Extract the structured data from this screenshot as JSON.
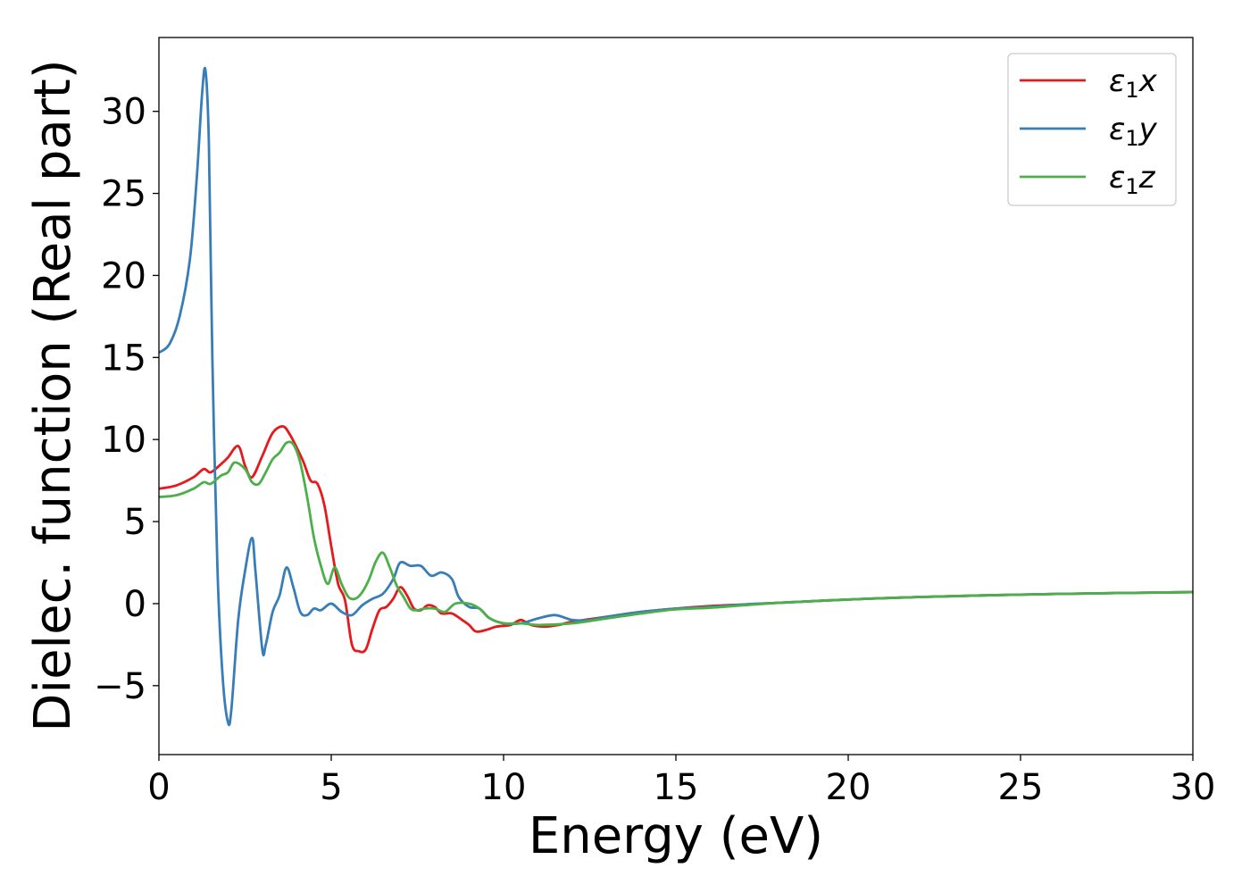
{
  "chart_data": {
    "type": "line",
    "xlabel": "Energy (eV)",
    "ylabel": "Dielec. function (Real part)",
    "xlim": [
      0,
      30
    ],
    "ylim": [
      -9.2,
      34.5
    ],
    "xticks": [
      0,
      5,
      10,
      15,
      20,
      25,
      30
    ],
    "yticks": [
      -5,
      0,
      5,
      10,
      15,
      20,
      25,
      30
    ],
    "xtick_labels": [
      "0",
      "5",
      "10",
      "15",
      "20",
      "25",
      "30"
    ],
    "ytick_labels": [
      "−5",
      "0",
      "5",
      "10",
      "15",
      "20",
      "25",
      "30"
    ],
    "grid": false,
    "legend_position": "top-right",
    "series": [
      {
        "name": "ε₁x",
        "legend_main": "ε",
        "legend_sub": "1",
        "legend_var": "x",
        "color": "#e41a1c",
        "x": [
          0,
          0.5,
          1.0,
          1.3,
          1.5,
          1.8,
          2.0,
          2.3,
          2.5,
          2.7,
          3.0,
          3.3,
          3.6,
          3.8,
          4.0,
          4.2,
          4.4,
          4.6,
          4.8,
          5.0,
          5.2,
          5.4,
          5.6,
          5.8,
          6.0,
          6.2,
          6.4,
          6.6,
          6.8,
          7.0,
          7.2,
          7.4,
          7.6,
          7.8,
          8.0,
          8.2,
          8.5,
          8.8,
          9.0,
          9.2,
          9.5,
          9.8,
          10.2,
          10.5,
          10.8,
          11.2,
          11.6,
          12.0,
          13.0,
          14.0,
          15.0,
          16.0,
          17.0,
          18.0,
          20.0,
          22.0,
          25.0,
          28.0,
          30.0
        ],
        "y": [
          7.0,
          7.2,
          7.7,
          8.2,
          8.0,
          8.5,
          8.9,
          9.6,
          8.4,
          7.7,
          9.0,
          10.4,
          10.8,
          10.3,
          9.5,
          8.6,
          7.5,
          7.3,
          6.0,
          3.5,
          1.2,
          0.2,
          -2.5,
          -2.9,
          -2.8,
          -1.5,
          -0.4,
          -0.2,
          0.3,
          1.0,
          0.5,
          -0.3,
          -0.4,
          -0.1,
          -0.2,
          -0.6,
          -0.6,
          -1.0,
          -1.3,
          -1.7,
          -1.6,
          -1.4,
          -1.3,
          -1.0,
          -1.3,
          -1.4,
          -1.3,
          -1.1,
          -0.8,
          -0.5,
          -0.3,
          -0.15,
          -0.05,
          0.05,
          0.25,
          0.4,
          0.55,
          0.65,
          0.7
        ]
      },
      {
        "name": "ε₁y",
        "legend_main": "ε",
        "legend_sub": "1",
        "legend_var": "y",
        "color": "#377eb8",
        "x": [
          0,
          0.3,
          0.6,
          0.9,
          1.1,
          1.25,
          1.35,
          1.45,
          1.55,
          1.7,
          1.85,
          2.0,
          2.1,
          2.3,
          2.5,
          2.7,
          2.8,
          3.0,
          3.1,
          3.3,
          3.5,
          3.7,
          3.9,
          4.1,
          4.3,
          4.5,
          4.7,
          5.0,
          5.3,
          5.6,
          5.9,
          6.2,
          6.5,
          6.8,
          7.0,
          7.3,
          7.6,
          7.9,
          8.2,
          8.5,
          8.7,
          9.0,
          9.3,
          9.6,
          10.0,
          10.5,
          11.0,
          11.5,
          12.0,
          12.5,
          13.0,
          14.0,
          15.0,
          16.0,
          17.0,
          18.0,
          20.0,
          22.0,
          25.0,
          28.0,
          30.0
        ],
        "y": [
          15.3,
          15.8,
          17.5,
          21.0,
          26.0,
          31.0,
          32.5,
          28.0,
          15.0,
          2.0,
          -4.5,
          -7.2,
          -6.5,
          -1.0,
          2.0,
          4.0,
          2.0,
          -2.8,
          -2.5,
          -0.5,
          0.5,
          2.2,
          1.0,
          -0.5,
          -0.7,
          -0.3,
          -0.4,
          0.0,
          -0.5,
          -0.7,
          -0.1,
          0.3,
          0.6,
          1.5,
          2.5,
          2.3,
          2.3,
          1.7,
          1.9,
          1.5,
          0.4,
          -0.2,
          -0.3,
          -0.9,
          -1.2,
          -1.2,
          -0.9,
          -0.7,
          -1.0,
          -1.0,
          -0.8,
          -0.5,
          -0.3,
          -0.2,
          -0.05,
          0.05,
          0.25,
          0.4,
          0.55,
          0.65,
          0.7
        ]
      },
      {
        "name": "ε₁z",
        "legend_main": "ε",
        "legend_sub": "1",
        "legend_var": "z",
        "color": "#4daf4a",
        "x": [
          0,
          0.5,
          1.0,
          1.3,
          1.5,
          1.8,
          2.0,
          2.2,
          2.5,
          2.7,
          2.9,
          3.1,
          3.3,
          3.5,
          3.7,
          3.9,
          4.1,
          4.3,
          4.5,
          4.7,
          4.9,
          5.1,
          5.3,
          5.5,
          5.7,
          5.9,
          6.1,
          6.3,
          6.5,
          6.7,
          6.9,
          7.1,
          7.3,
          7.5,
          7.7,
          8.0,
          8.3,
          8.6,
          9.0,
          9.3,
          9.6,
          10.0,
          10.5,
          11.0,
          12.0,
          13.0,
          14.0,
          15.0,
          16.0,
          17.0,
          18.0,
          20.0,
          22.0,
          25.0,
          28.0,
          30.0
        ],
        "y": [
          6.5,
          6.6,
          7.0,
          7.4,
          7.3,
          7.8,
          8.0,
          8.6,
          8.2,
          7.4,
          7.3,
          8.0,
          8.8,
          9.2,
          9.8,
          9.7,
          8.6,
          6.5,
          4.0,
          2.3,
          1.2,
          2.2,
          1.2,
          0.4,
          0.3,
          0.7,
          1.5,
          2.6,
          3.1,
          2.2,
          1.1,
          0.4,
          -0.3,
          -0.4,
          -0.3,
          -0.3,
          -0.5,
          0.0,
          0.0,
          -0.3,
          -0.9,
          -1.2,
          -1.2,
          -1.3,
          -1.2,
          -0.9,
          -0.6,
          -0.35,
          -0.25,
          -0.1,
          0.05,
          0.25,
          0.4,
          0.55,
          0.65,
          0.7
        ]
      }
    ]
  }
}
